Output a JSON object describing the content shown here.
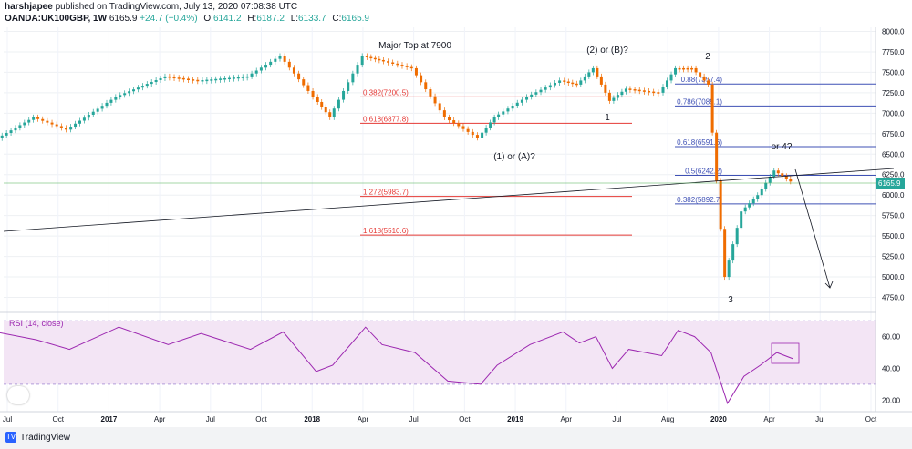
{
  "header": {
    "author": "harshjapee",
    "published": "published on TradingView.com, July 13, 2020 07:08:38 UTC",
    "symbol": "OANDA:UK100GBP, 1W",
    "last": "6165.9",
    "change": "+24.7 (+0.4%)",
    "open_label": "O:",
    "open": "6141.2",
    "high_label": "H:",
    "high": "6187.2",
    "low_label": "L:",
    "low": "6133.7",
    "close_label": "C:",
    "close": "6165.9"
  },
  "footer": {
    "brand": "TradingView"
  },
  "chart_data": [
    {
      "type": "candlestick",
      "title": "OANDA:UK100GBP, 1W",
      "x_ticks": [
        "Jul",
        "Oct",
        "2017",
        "Apr",
        "Jul",
        "Oct",
        "2018",
        "Apr",
        "Jul",
        "Oct",
        "2019",
        "Apr",
        "Jul",
        "Aug",
        "2020",
        "Apr",
        "Jul",
        "Oct"
      ],
      "y_ticks": [
        "8000.0",
        "7750.0",
        "7500.0",
        "7250.0",
        "7000.0",
        "6750.0",
        "6500.0",
        "6250.0",
        "6000.0",
        "5750.0",
        "5500.0",
        "5250.0",
        "5000.0",
        "4750.0"
      ],
      "ylim": [
        4600,
        8050
      ],
      "x_date_range": [
        "2016-07",
        "2020-12"
      ],
      "last_price_label": "6165.9",
      "series": [
        {
          "name": "",
          "x": [
            "2016-06",
            "2016-09",
            "2016-11",
            "2017-02",
            "2017-05",
            "2017-07",
            "2017-10",
            "2017-12",
            "2018-02",
            "2018-03",
            "2018-05",
            "2018-06",
            "2018-08",
            "2018-10",
            "2018-12",
            "2019-01",
            "2019-03",
            "2019-05",
            "2019-06",
            "2019-07",
            "2019-08",
            "2019-09",
            "2019-11",
            "2019-12",
            "2020-01",
            "2020-02",
            "2020-03",
            "2020-04",
            "2020-05",
            "2020-06",
            "2020-07"
          ],
          "y": [
            6600,
            6950,
            6800,
            7200,
            7450,
            7400,
            7450,
            7700,
            7200,
            6950,
            7700,
            7650,
            7550,
            6950,
            6700,
            6950,
            7200,
            7400,
            7350,
            7550,
            7150,
            7300,
            7250,
            7550,
            7550,
            7350,
            5000,
            5800,
            6000,
            6300,
            6166
          ]
        }
      ],
      "fib_levels_red": [
        {
          "label": "0.382(7200.5)",
          "value": 7200.5
        },
        {
          "label": "0.618(6877.8)",
          "value": 6877.8
        },
        {
          "label": "1.272(5983.7)",
          "value": 5983.7
        },
        {
          "label": "1.618(5510.6)",
          "value": 5510.6
        }
      ],
      "fib_levels_blue": [
        {
          "label": "0.88(7357.4)",
          "value": 7357.4
        },
        {
          "label": "0.786(7089.1)",
          "value": 7089.1
        },
        {
          "label": "0.618(6591.6)",
          "value": 6591.6
        },
        {
          "label": "0.5(6242.2)",
          "value": 6242.2
        },
        {
          "label": "0.382(5892.7)",
          "value": 5892.7
        }
      ],
      "annotations": [
        "Major Top at 7900",
        "(2) or (B)?",
        "2",
        "1",
        "(1) or (A)?",
        "or 4?",
        "3"
      ],
      "colors": {
        "up": "#26a69a",
        "down": "#ef6c00",
        "fib_red": "#e53935",
        "fib_blue": "#3f51b5"
      }
    },
    {
      "type": "line",
      "title": "RSI (14, close)",
      "y_ticks": [
        "60.00",
        "40.00",
        "20.00"
      ],
      "ylim": [
        15,
        73
      ],
      "band": [
        30,
        70
      ],
      "series": [
        {
          "name": "",
          "x": [
            "2016-06",
            "2016-09",
            "2016-11",
            "2017-02",
            "2017-05",
            "2017-07",
            "2017-10",
            "2017-12",
            "2018-02",
            "2018-03",
            "2018-05",
            "2018-06",
            "2018-08",
            "2018-10",
            "2018-12",
            "2019-01",
            "2019-03",
            "2019-05",
            "2019-06",
            "2019-07",
            "2019-08",
            "2019-09",
            "2019-11",
            "2019-12",
            "2020-01",
            "2020-02",
            "2020-03",
            "2020-04",
            "2020-05",
            "2020-06",
            "2020-07"
          ],
          "y": [
            64,
            58,
            52,
            66,
            55,
            62,
            52,
            63,
            38,
            42,
            66,
            55,
            50,
            32,
            30,
            42,
            55,
            63,
            56,
            60,
            40,
            52,
            48,
            64,
            60,
            50,
            18,
            35,
            42,
            50,
            46
          ]
        }
      ],
      "colors": {
        "line": "#9c27b0",
        "band": "#f3e5f5"
      }
    }
  ]
}
